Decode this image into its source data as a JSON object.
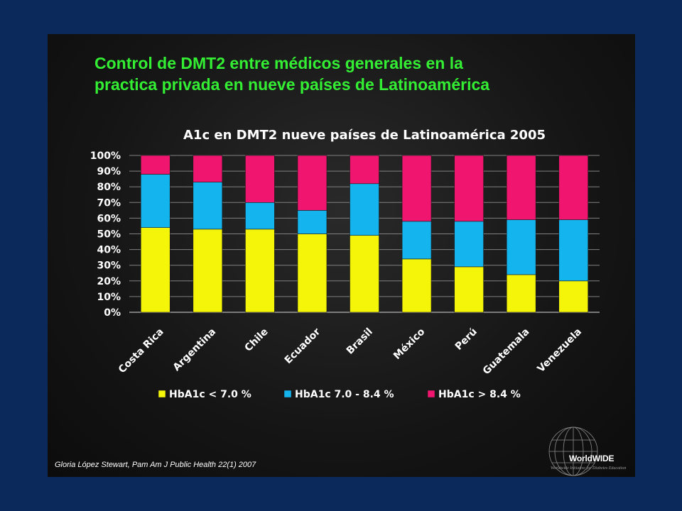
{
  "slide": {
    "headline_line1": "Control de DMT2 entre médicos generales en la",
    "headline_line2": "practica privada en nueve países de Latinoamérica",
    "citation": "Gloria López Stewart, Pam Am J Public Health 22(1) 2007",
    "logo_name": "WorldWIDE",
    "logo_tagline": "Worldwide Initiative for Diabetes Education",
    "headline_color": "#33ee33",
    "background_color": "#0b2a5b"
  },
  "chart_data": {
    "type": "bar",
    "stacked": true,
    "title": "A1c  en DMT2 nueve países de Latinoamérica 2005",
    "categories": [
      "Costa Rica",
      "Argentina",
      "Chile",
      "Ecuador",
      "Brasil",
      "México",
      "Perú",
      "Guatemala",
      "Venezuela"
    ],
    "y_ticks": [
      "0%",
      "10%",
      "20%",
      "30%",
      "40%",
      "50%",
      "60%",
      "70%",
      "80%",
      "90%",
      "100%"
    ],
    "ylim": [
      0,
      100
    ],
    "grid": true,
    "legend_position": "bottom",
    "series": [
      {
        "name": "HbA1c < 7.0 %",
        "color": "#f5f50a",
        "values": [
          54,
          53,
          53,
          50,
          49,
          34,
          29,
          24,
          20
        ]
      },
      {
        "name": "HbA1c 7.0 - 8.4 %",
        "color": "#14b4ee",
        "values": [
          34,
          30,
          17,
          15,
          33,
          24,
          29,
          35,
          39
        ]
      },
      {
        "name": "HbA1c > 8.4 %",
        "color": "#f0156e",
        "values": [
          12,
          17,
          30,
          35,
          18,
          42,
          42,
          41,
          41
        ]
      }
    ]
  }
}
